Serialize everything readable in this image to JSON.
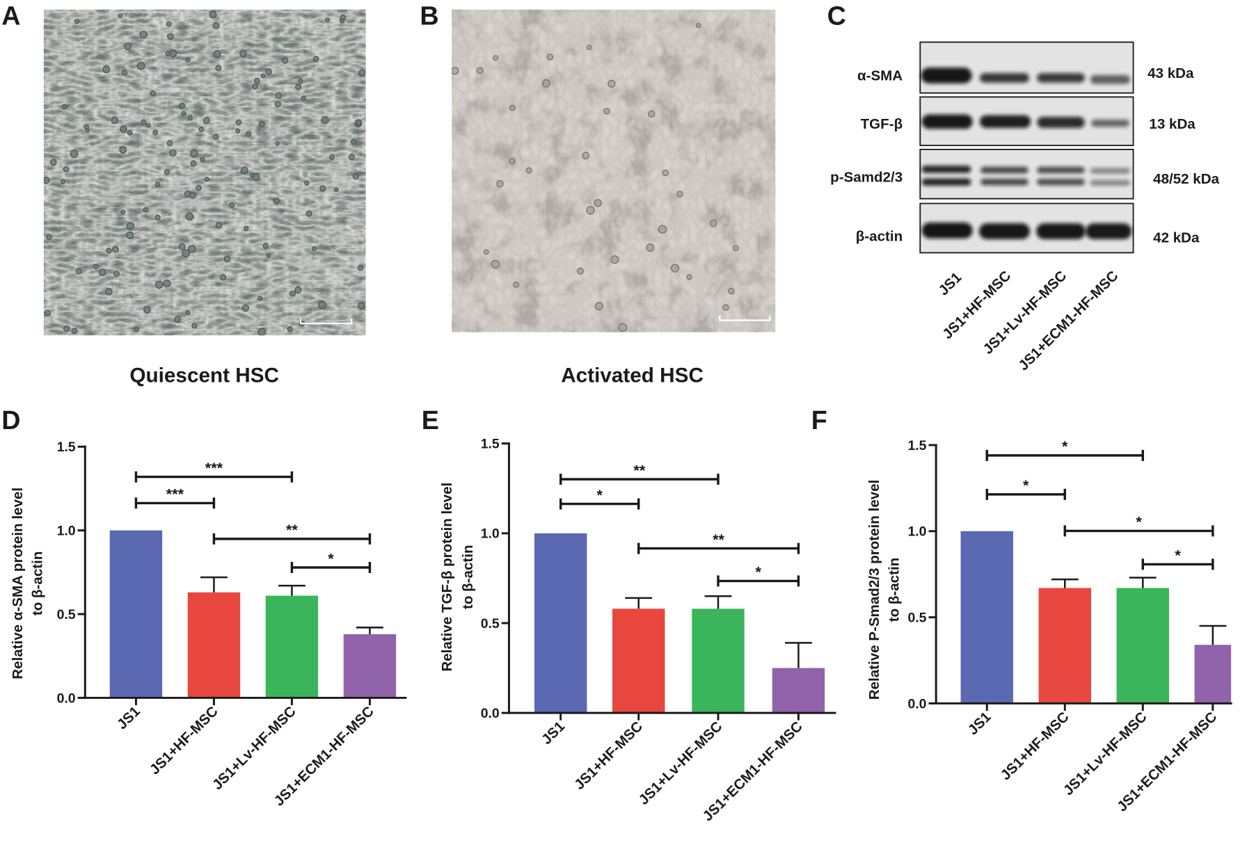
{
  "figure": {
    "panel_a": {
      "letter": "A",
      "caption": "Quiescent HSC"
    },
    "panel_b": {
      "letter": "B",
      "caption": "Activated HSC"
    },
    "panel_c": {
      "letter": "C",
      "rows": [
        {
          "protein": "α-SMA",
          "size": "43 kDa"
        },
        {
          "protein": "TGF-β",
          "size": "13 kDa"
        },
        {
          "protein": "p-Samd2/3",
          "size": "48/52 kDa"
        },
        {
          "protein": "β-actin",
          "size": "42 kDa"
        }
      ],
      "lanes": [
        "JS1",
        "JS1+HF-MSC",
        "JS1+Lv-HF-MSC",
        "JS1+ECM1-HF-MSC"
      ]
    }
  },
  "chart_data": [
    {
      "panel": "D",
      "type": "bar",
      "categories": [
        "JS1",
        "JS1+HF-MSC",
        "JS1+Lv-HF-MSC",
        "JS1+ECM1-HF-MSC"
      ],
      "values": [
        1.0,
        0.63,
        0.61,
        0.38
      ],
      "errors": [
        0,
        0.09,
        0.06,
        0.04
      ],
      "bar_colors": [
        "#5A69B1",
        "#E8473F",
        "#3BB55B",
        "#9163AA"
      ],
      "ylabel": [
        "Relative α-SMA protein level",
        "to β-actin"
      ],
      "ylim": [
        0,
        1.5
      ],
      "yticks": [
        "0.0",
        "0.5",
        "1.0",
        "1.5"
      ],
      "grid": false,
      "significance": [
        {
          "from": 0,
          "to": 2,
          "label": "***"
        },
        {
          "from": 0,
          "to": 1,
          "label": "***"
        },
        {
          "from": 1,
          "to": 3,
          "label": "**"
        },
        {
          "from": 2,
          "to": 3,
          "label": "*"
        }
      ]
    },
    {
      "panel": "E",
      "type": "bar",
      "categories": [
        "JS1",
        "JS1+HF-MSC",
        "JS1+Lv-HF-MSC",
        "JS1+ECM1-HF-MSC"
      ],
      "values": [
        1.0,
        0.58,
        0.58,
        0.25
      ],
      "errors": [
        0,
        0.06,
        0.07,
        0.14
      ],
      "bar_colors": [
        "#5A69B1",
        "#E8473F",
        "#3BB55B",
        "#9163AA"
      ],
      "ylabel": [
        "Relative TGF-β protein level",
        "to β-actin"
      ],
      "ylim": [
        0,
        1.5
      ],
      "yticks": [
        "0.0",
        "0.5",
        "1.0",
        "1.5"
      ],
      "grid": false,
      "significance": [
        {
          "from": 0,
          "to": 2,
          "label": "**"
        },
        {
          "from": 0,
          "to": 1,
          "label": "*"
        },
        {
          "from": 1,
          "to": 3,
          "label": "**"
        },
        {
          "from": 2,
          "to": 3,
          "label": "*"
        }
      ]
    },
    {
      "panel": "F",
      "type": "bar",
      "categories": [
        "JS1",
        "JS1+HF-MSC",
        "JS1+Lv-HF-MSC",
        "JS1+ECM1-HF-MSC"
      ],
      "values": [
        1.0,
        0.67,
        0.67,
        0.34
      ],
      "errors": [
        0,
        0.05,
        0.06,
        0.11
      ],
      "bar_colors": [
        "#5A69B1",
        "#E8473F",
        "#3BB55B",
        "#9163AA"
      ],
      "ylabel": [
        "Relative P-Smad2/3 protein level",
        "to β-actin"
      ],
      "ylim": [
        0,
        1.5
      ],
      "yticks": [
        "0.0",
        "0.5",
        "1.0",
        "1.5"
      ],
      "grid": false,
      "significance": [
        {
          "from": 0,
          "to": 2,
          "label": "*"
        },
        {
          "from": 0,
          "to": 1,
          "label": "*"
        },
        {
          "from": 1,
          "to": 3,
          "label": "*"
        },
        {
          "from": 2,
          "to": 3,
          "label": "*"
        }
      ]
    }
  ]
}
